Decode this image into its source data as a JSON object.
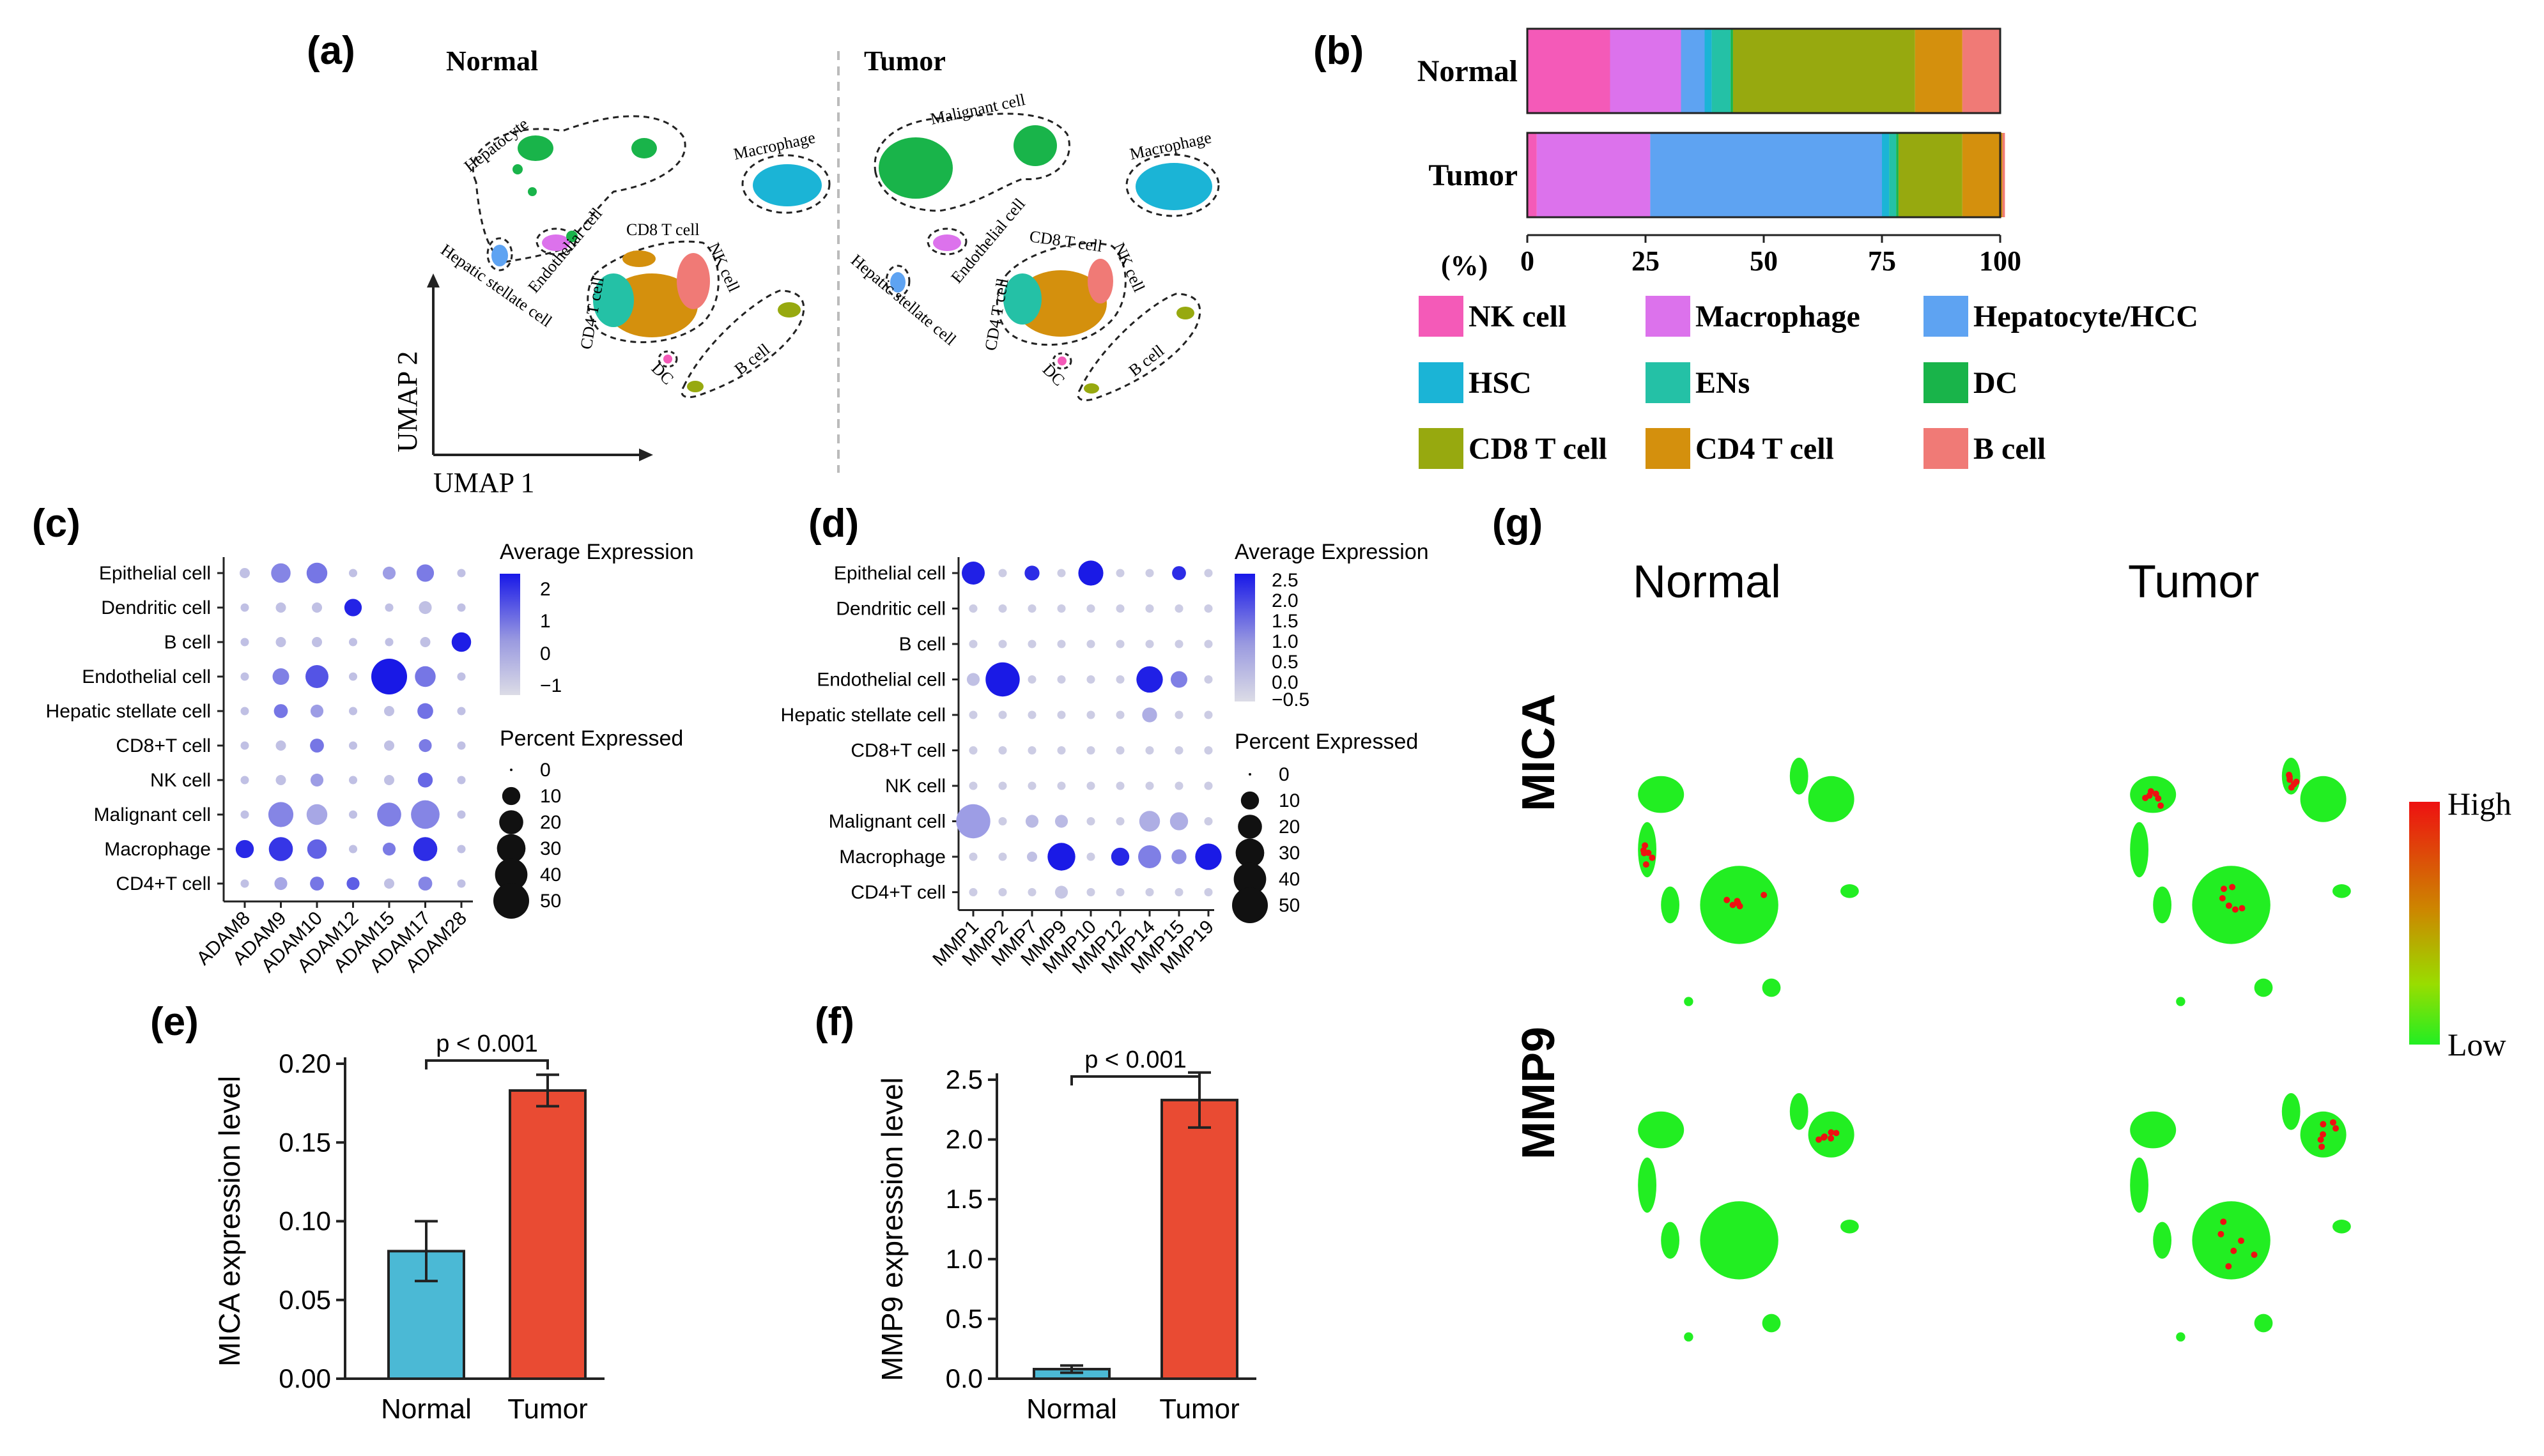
{
  "colors": {
    "nk": "#f45ab8",
    "mac": "#dc72ec",
    "hep": "#5ea3f2",
    "hsc": "#1bb4d6",
    "ens": "#24c1a6",
    "dc": "#19b44a",
    "cd8": "#97a90f",
    "cd4": "#d4900d",
    "bcell": "#f07a76",
    "barBlue": "#4bb9d5",
    "barRed": "#e94b33",
    "dotFill": "#1414e6",
    "dotLow": "#d8d8e4",
    "umapGreen": "#22ee22",
    "umapRed": "#ee1111"
  },
  "panel_a": {
    "label": "(a)",
    "normal_title": "Normal",
    "tumor_title": "Tumor",
    "axis_x": "UMAP 1",
    "axis_y": "UMAP 2",
    "normal_labels": [
      "Hepatocyte",
      "Macrophage",
      "Endothelial cell",
      "Hepatic stellate cell",
      "CD8 T cell",
      "NK cell",
      "CD4 T cell",
      "DC",
      "B cell"
    ],
    "tumor_labels": [
      "Malignant cell",
      "Macrophage",
      "Endothelial cell",
      "Hepatic stellate cell",
      "CD8 T cell",
      "NK cell",
      "CD4 T cell",
      "DC",
      "B cell"
    ]
  },
  "panel_b": {
    "label": "(b)",
    "pct_label": "(%)",
    "legend": [
      {
        "name": "NK cell",
        "key": "nk"
      },
      {
        "name": "Macrophage",
        "key": "mac"
      },
      {
        "name": "Hepatocyte/HCC",
        "key": "hep"
      },
      {
        "name": "HSC",
        "key": "hsc"
      },
      {
        "name": "ENs",
        "key": "ens"
      },
      {
        "name": "DC",
        "key": "dc"
      },
      {
        "name": "CD8 T cell",
        "key": "cd8"
      },
      {
        "name": "CD4 T cell",
        "key": "cd4"
      },
      {
        "name": "B cell",
        "key": "bcell"
      }
    ]
  },
  "panel_c": {
    "label": "(c)",
    "legend_expr_title": "Average Expression",
    "legend_expr_ticks": [
      "2",
      "1",
      "0",
      "−1"
    ],
    "legend_pct_title": "Percent Expressed",
    "legend_pct_ticks": [
      "0",
      "10",
      "20",
      "30",
      "40",
      "50"
    ]
  },
  "panel_d": {
    "label": "(d)",
    "legend_expr_title": "Average Expression",
    "legend_expr_ticks": [
      "2.5",
      "2.0",
      "1.5",
      "1.0",
      "0.5",
      "0.0",
      "−0.5"
    ],
    "legend_pct_title": "Percent Expressed",
    "legend_pct_ticks": [
      "0",
      "10",
      "20",
      "30",
      "40",
      "50"
    ]
  },
  "panel_e": {
    "label": "(e)",
    "pvalue": "p < 0.001"
  },
  "panel_f": {
    "label": "(f)",
    "pvalue": "p < 0.001"
  },
  "panel_g": {
    "label": "(g)",
    "col_normal": "Normal",
    "col_tumor": "Tumor",
    "row_mica": "MICA",
    "row_mmp9": "MMP9",
    "scale_high": "High",
    "scale_low": "Low"
  },
  "chart_data": [
    {
      "id": "b",
      "type": "bar",
      "orientation": "horizontal-stacked",
      "categories": [
        "Normal",
        "Tumor"
      ],
      "xlabel": "(%)",
      "xlim": [
        0,
        100
      ],
      "xticks": [
        "0",
        "25",
        "50",
        "75",
        "100"
      ],
      "series": [
        {
          "name": "NK cell",
          "values": [
            17.5,
            2
          ]
        },
        {
          "name": "Macrophage",
          "values": [
            15,
            24
          ]
        },
        {
          "name": "Hepatocyte/HCC",
          "values": [
            5,
            49
          ]
        },
        {
          "name": "HSC",
          "values": [
            1.5,
            1.5
          ]
        },
        {
          "name": "ENs",
          "values": [
            4,
            1.5
          ]
        },
        {
          "name": "DC",
          "values": [
            0.5,
            0.5
          ]
        },
        {
          "name": "CD8 T cell",
          "values": [
            38.5,
            13.5
          ]
        },
        {
          "name": "CD4 T cell",
          "values": [
            10,
            8.5
          ]
        },
        {
          "name": "B cell",
          "values": [
            8,
            0.5
          ]
        }
      ]
    },
    {
      "id": "c",
      "type": "scatter",
      "subtype": "dot-plot",
      "genes": [
        "ADAM8",
        "ADAM9",
        "ADAM10",
        "ADAM12",
        "ADAM15",
        "ADAM17",
        "ADAM28"
      ],
      "cell_types": [
        "Epithelial cell",
        "Dendritic cell",
        "B cell",
        "Endothelial cell",
        "Hepatic stellate cell",
        "CD8+T cell",
        "NK cell",
        "Malignant cell",
        "Macrophage",
        "CD4+T cell"
      ],
      "expression_range": [
        -1.5,
        2.5
      ],
      "percent": [
        [
          2,
          12,
          14,
          1,
          4,
          9,
          1
        ],
        [
          1,
          2,
          2,
          9,
          1,
          4,
          1
        ],
        [
          1,
          2,
          2,
          1,
          1,
          2,
          12
        ],
        [
          1,
          8,
          18,
          1,
          50,
          14,
          1
        ],
        [
          1,
          5,
          4,
          1,
          2,
          7,
          1
        ],
        [
          1,
          2,
          5,
          1,
          2,
          4,
          1
        ],
        [
          1,
          2,
          4,
          1,
          2,
          6,
          1
        ],
        [
          1,
          22,
          14,
          1,
          20,
          30,
          1
        ],
        [
          10,
          20,
          12,
          1,
          4,
          20,
          1
        ],
        [
          1,
          4,
          5,
          4,
          2,
          5,
          1
        ]
      ],
      "expression": [
        [
          -1,
          0.2,
          0.5,
          -1,
          -0.3,
          0.4,
          -1
        ],
        [
          -1,
          -1,
          -1,
          2.2,
          -1,
          -1,
          -1
        ],
        [
          -1,
          -1,
          -1,
          -1,
          -1,
          -1,
          2.3
        ],
        [
          -1,
          0.3,
          1.2,
          -1,
          2.4,
          0.5,
          -1
        ],
        [
          -1,
          0.5,
          -0.3,
          -1,
          -1,
          0.6,
          -1
        ],
        [
          -1,
          -1,
          0.5,
          -1,
          -1,
          0.4,
          -1
        ],
        [
          -1,
          -1,
          -0.3,
          -1,
          -1,
          0.8,
          -1
        ],
        [
          -1,
          0.2,
          -0.5,
          -1,
          0.3,
          0.2,
          -1
        ],
        [
          2.1,
          1.8,
          0.9,
          -1,
          0.4,
          2,
          -1
        ],
        [
          -1,
          -0.5,
          0.5,
          1,
          -1,
          0.2,
          -1
        ]
      ]
    },
    {
      "id": "d",
      "type": "scatter",
      "subtype": "dot-plot",
      "genes": [
        "MMP1",
        "MMP2",
        "MMP7",
        "MMP9",
        "MMP10",
        "MMP12",
        "MMP14",
        "MMP15",
        "MMP19"
      ],
      "cell_types": [
        "Epithelial cell",
        "Dendritic cell",
        "B cell",
        "Endothelial cell",
        "Hepatic stellate cell",
        "CD8+T cell",
        "NK cell",
        "Malignant cell",
        "Macrophage",
        "CD4+T cell"
      ],
      "expression_range": [
        -0.7,
        2.6
      ],
      "percent": [
        [
          18,
          1,
          6,
          1,
          22,
          1,
          1,
          5,
          1
        ],
        [
          1,
          1,
          1,
          1,
          1,
          1,
          1,
          1,
          1
        ],
        [
          1,
          1,
          1,
          1,
          1,
          1,
          1,
          1,
          1
        ],
        [
          4,
          45,
          1,
          1,
          1,
          1,
          25,
          8,
          1
        ],
        [
          1,
          1,
          1,
          1,
          1,
          1,
          6,
          1,
          1
        ],
        [
          1,
          1,
          1,
          1,
          1,
          1,
          1,
          1,
          1
        ],
        [
          1,
          1,
          1,
          1,
          1,
          1,
          1,
          1,
          1
        ],
        [
          45,
          1,
          4,
          4,
          1,
          1,
          14,
          10,
          1
        ],
        [
          1,
          1,
          2,
          28,
          1,
          10,
          18,
          6,
          25
        ],
        [
          1,
          1,
          1,
          4,
          1,
          1,
          1,
          1,
          1
        ]
      ],
      "expression": [
        [
          2.4,
          -0.5,
          2.2,
          -0.5,
          2.5,
          -0.5,
          -0.5,
          2.2,
          -0.5
        ],
        [
          -0.5,
          -0.5,
          -0.5,
          -0.5,
          -0.5,
          -0.5,
          -0.5,
          -0.5,
          -0.5
        ],
        [
          -0.5,
          -0.5,
          -0.5,
          -0.5,
          -0.5,
          -0.5,
          -0.5,
          -0.5,
          -0.5
        ],
        [
          -0.3,
          2.5,
          -0.5,
          -0.5,
          -0.5,
          -0.5,
          2.4,
          0.8,
          -0.5
        ],
        [
          -0.5,
          -0.5,
          -0.5,
          -0.5,
          -0.5,
          -0.5,
          0,
          -0.5,
          -0.5
        ],
        [
          -0.5,
          -0.5,
          -0.5,
          -0.5,
          -0.5,
          -0.5,
          -0.5,
          -0.5,
          -0.5
        ],
        [
          -0.5,
          -0.5,
          -0.5,
          -0.5,
          -0.5,
          -0.5,
          -0.5,
          -0.5,
          -0.5
        ],
        [
          0.3,
          -0.5,
          -0.2,
          -0.2,
          -0.5,
          -0.5,
          0,
          0,
          -0.5
        ],
        [
          -0.5,
          -0.5,
          -0.3,
          2.5,
          -0.5,
          2.3,
          0.8,
          0.5,
          2.5
        ],
        [
          -0.5,
          -0.5,
          -0.5,
          -0.4,
          -0.5,
          -0.5,
          -0.5,
          -0.5,
          -0.5
        ]
      ]
    },
    {
      "id": "e",
      "type": "bar",
      "categories": [
        "Normal",
        "Tumor"
      ],
      "values": [
        0.081,
        0.183
      ],
      "error": [
        0.019,
        0.01
      ],
      "ylabel": "MICA expression level",
      "ylim": [
        0,
        0.2
      ],
      "yticks": [
        "0.00",
        "0.05",
        "0.10",
        "0.15",
        "0.20"
      ],
      "annotation": "p < 0.001"
    },
    {
      "id": "f",
      "type": "bar",
      "categories": [
        "Normal",
        "Tumor"
      ],
      "values": [
        0.08,
        2.33
      ],
      "error": [
        0.03,
        0.23
      ],
      "ylabel": "MMP9 expression level",
      "ylim": [
        0,
        2.5
      ],
      "yticks": [
        "0.0",
        "0.5",
        "1.0",
        "1.5",
        "2.0",
        "2.5"
      ],
      "annotation": "p < 0.001"
    }
  ]
}
